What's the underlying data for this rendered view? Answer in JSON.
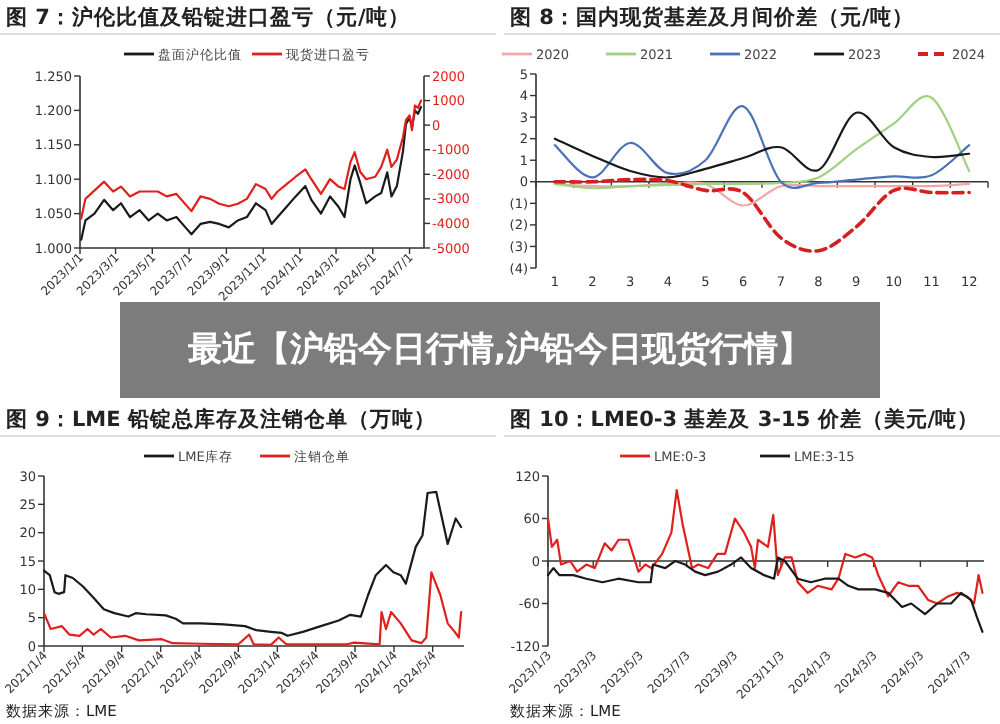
{
  "chart_data": [
    {
      "type": "line",
      "title": "图 7：沪伦比值及铅锭进口盈亏（元/吨）",
      "legend": "top",
      "xlim": [
        "2023-01-01",
        "2024-07-25"
      ],
      "xticks": [
        {
          "value": "2023-01-01",
          "label": "2023/1/1"
        },
        {
          "value": "2023-03-01",
          "label": "2023/3/1"
        },
        {
          "value": "2023-05-01",
          "label": "2023/5/1"
        },
        {
          "value": "2023-07-01",
          "label": "2023/7/1"
        },
        {
          "value": "2023-09-01",
          "label": "2023/9/1"
        },
        {
          "value": "2023-11-01",
          "label": "2023/11/1"
        },
        {
          "value": "2024-01-01",
          "label": "2024/1/1"
        },
        {
          "value": "2024-03-01",
          "label": "2024/3/1"
        },
        {
          "value": "2024-05-01",
          "label": "2024/5/1"
        },
        {
          "value": "2024-07-01",
          "label": "2024/7/1"
        }
      ],
      "ylim": [
        1.0,
        1.25
      ],
      "yticks": [
        {
          "value": 1.0,
          "label": "1.000"
        },
        {
          "value": 1.05,
          "label": "1.050"
        },
        {
          "value": 1.1,
          "label": "1.100"
        },
        {
          "value": 1.15,
          "label": "1.150"
        },
        {
          "value": 1.2,
          "label": "1.200"
        },
        {
          "value": 1.25,
          "label": "1.250"
        }
      ],
      "y2lim": [
        -5000,
        2000
      ],
      "y2ticks": [
        -5000,
        -4000,
        -3000,
        -2000,
        -1000,
        0,
        1000,
        2000
      ],
      "series": [
        {
          "name": "盘面沪伦比值",
          "color": "#1a1a1a",
          "x": [
            "2023-01-03",
            "2023-01-10",
            "2023-01-25",
            "2023-02-10",
            "2023-02-25",
            "2023-03-10",
            "2023-03-25",
            "2023-04-10",
            "2023-04-25",
            "2023-05-10",
            "2023-05-25",
            "2023-06-10",
            "2023-06-25",
            "2023-07-05",
            "2023-07-20",
            "2023-08-05",
            "2023-08-20",
            "2023-09-05",
            "2023-09-20",
            "2023-10-05",
            "2023-10-20",
            "2023-11-05",
            "2023-11-15",
            "2023-11-25",
            "2023-12-10",
            "2023-12-25",
            "2024-01-10",
            "2024-01-20",
            "2024-02-05",
            "2024-02-20",
            "2024-03-05",
            "2024-03-15",
            "2024-03-25",
            "2024-04-01",
            "2024-04-10",
            "2024-04-20",
            "2024-05-05",
            "2024-05-15",
            "2024-05-25",
            "2024-06-01",
            "2024-06-10",
            "2024-06-20",
            "2024-06-25",
            "2024-07-01",
            "2024-07-05",
            "2024-07-10",
            "2024-07-15",
            "2024-07-20"
          ],
          "values": [
            1.012,
            1.04,
            1.05,
            1.07,
            1.055,
            1.065,
            1.045,
            1.055,
            1.04,
            1.05,
            1.04,
            1.045,
            1.03,
            1.02,
            1.035,
            1.038,
            1.035,
            1.03,
            1.04,
            1.045,
            1.065,
            1.055,
            1.035,
            1.045,
            1.06,
            1.075,
            1.09,
            1.07,
            1.05,
            1.075,
            1.06,
            1.045,
            1.1,
            1.12,
            1.095,
            1.065,
            1.075,
            1.08,
            1.11,
            1.075,
            1.09,
            1.14,
            1.18,
            1.19,
            1.175,
            1.2,
            1.195,
            1.205
          ]
        },
        {
          "name": "现货进口盈亏",
          "color": "#e0201c",
          "axis": "y2",
          "x": [
            "2023-01-03",
            "2023-01-10",
            "2023-02-10",
            "2023-02-25",
            "2023-03-10",
            "2023-03-25",
            "2023-04-10",
            "2023-05-10",
            "2023-05-25",
            "2023-06-10",
            "2023-07-05",
            "2023-07-20",
            "2023-08-05",
            "2023-08-20",
            "2023-09-05",
            "2023-09-20",
            "2023-10-05",
            "2023-10-20",
            "2023-11-05",
            "2023-11-15",
            "2023-11-25",
            "2023-12-10",
            "2023-12-25",
            "2024-01-10",
            "2024-01-20",
            "2024-02-05",
            "2024-02-20",
            "2024-03-05",
            "2024-03-15",
            "2024-03-25",
            "2024-04-01",
            "2024-04-10",
            "2024-04-20",
            "2024-05-05",
            "2024-05-15",
            "2024-05-25",
            "2024-06-01",
            "2024-06-10",
            "2024-06-20",
            "2024-06-25",
            "2024-07-01",
            "2024-07-05",
            "2024-07-10",
            "2024-07-15",
            "2024-07-20"
          ],
          "values": [
            -3800,
            -3000,
            -2300,
            -2700,
            -2500,
            -2900,
            -2700,
            -2700,
            -2900,
            -2800,
            -3500,
            -2900,
            -3000,
            -3200,
            -3300,
            -3200,
            -3000,
            -2400,
            -2600,
            -3000,
            -2700,
            -2400,
            -2100,
            -1800,
            -2200,
            -2800,
            -2200,
            -2500,
            -2600,
            -1500,
            -1100,
            -1900,
            -2200,
            -2100,
            -1700,
            -1000,
            -1700,
            -1400,
            -500,
            200,
            400,
            -200,
            800,
            700,
            1000
          ]
        }
      ]
    },
    {
      "type": "line",
      "title": "图 8：国内现货基差及月间价差（元/吨）",
      "legend": "top",
      "categories": [
        "1",
        "2",
        "3",
        "4",
        "5",
        "6",
        "7",
        "8",
        "9",
        "10",
        "11",
        "12"
      ],
      "ylim": [
        -4,
        5
      ],
      "yticks": [
        {
          "value": -4,
          "label": "(4)"
        },
        {
          "value": -3,
          "label": "(3)"
        },
        {
          "value": -2,
          "label": "(2)"
        },
        {
          "value": -1,
          "label": "(1)"
        },
        0,
        1,
        2,
        3,
        4,
        5
      ],
      "series": [
        {
          "name": "2020",
          "color": "#f4a6a6",
          "values": [
            -0.1,
            -0.2,
            -0.2,
            -0.1,
            -0.1,
            -1.1,
            -0.2,
            -0.2,
            -0.2,
            -0.2,
            -0.2,
            -0.1
          ]
        },
        {
          "name": "2021",
          "color": "#9fd17f",
          "values": [
            -0.1,
            -0.3,
            -0.2,
            -0.15,
            -0.1,
            -0.1,
            -0.05,
            0.2,
            1.5,
            2.7,
            3.9,
            0.5
          ]
        },
        {
          "name": "2022",
          "color": "#4a72b8",
          "values": [
            1.7,
            0.2,
            1.8,
            0.4,
            1.0,
            3.5,
            0,
            -0.05,
            0.1,
            0.25,
            0.3,
            1.7
          ]
        },
        {
          "name": "2023",
          "color": "#1a1a1a",
          "values": [
            2.0,
            1.2,
            0.5,
            0.2,
            0.6,
            1.1,
            1.6,
            0.55,
            3.2,
            1.6,
            1.15,
            1.3
          ]
        },
        {
          "name": "2024",
          "color": "#d42020",
          "line_style": "dashed",
          "values": [
            0,
            0,
            0.1,
            0.05,
            -0.4,
            -0.5,
            -2.6,
            -3.2,
            -2.1,
            -0.4,
            -0.5,
            -0.5
          ]
        }
      ]
    },
    {
      "type": "other",
      "title": "最近【沪铅今日行情,沪铅今日现货行情】"
    },
    {
      "type": "line",
      "title": "图 9：LME 铅锭总库存及注销仓单（万吨）",
      "legend": "top",
      "xlim": [
        "2021-01-04",
        "2024-08-10"
      ],
      "xticks": [
        {
          "value": "2021-01-04",
          "label": "2021/1/4"
        },
        {
          "value": "2021-05-04",
          "label": "2021/5/4"
        },
        {
          "value": "2021-09-04",
          "label": "2021/9/4"
        },
        {
          "value": "2022-01-04",
          "label": "2022/1/4"
        },
        {
          "value": "2022-05-04",
          "label": "2022/5/4"
        },
        {
          "value": "2022-09-04",
          "label": "2022/9/4"
        },
        {
          "value": "2023-01-04",
          "label": "2023/1/4"
        },
        {
          "value": "2023-05-04",
          "label": "2023/5/4"
        },
        {
          "value": "2023-09-04",
          "label": "2023/9/4"
        },
        {
          "value": "2024-01-04",
          "label": "2024/1/4"
        },
        {
          "value": "2024-05-04",
          "label": "2024/5/4"
        }
      ],
      "ylim": [
        0,
        30
      ],
      "yticks": [
        0,
        5,
        10,
        15,
        20,
        25,
        30
      ],
      "annotations": [
        "数据来源：LME"
      ],
      "series": [
        {
          "name": "LME库存",
          "color": "#1a1a1a",
          "x": [
            "2021-01-04",
            "2021-01-22",
            "2021-02-06",
            "2021-02-18",
            "2021-03-08",
            "2021-03-12",
            "2021-04-04",
            "2021-05-06",
            "2021-06-08",
            "2021-07-10",
            "2021-08-12",
            "2021-09-25",
            "2021-10-18",
            "2021-11-20",
            "2022-01-20",
            "2022-02-20",
            "2022-03-15",
            "2022-05-10",
            "2022-07-20",
            "2022-09-25",
            "2022-10-30",
            "2022-12-15",
            "2023-01-18",
            "2023-02-05",
            "2023-03-25",
            "2023-05-20",
            "2023-07-15",
            "2023-08-20",
            "2023-09-22",
            "2023-10-15",
            "2023-11-08",
            "2023-12-10",
            "2024-01-02",
            "2024-01-25",
            "2024-02-10",
            "2024-03-12",
            "2024-04-02",
            "2024-04-18",
            "2024-05-15",
            "2024-06-20",
            "2024-07-15",
            "2024-08-01"
          ],
          "values": [
            13.3,
            12.5,
            9.5,
            9.2,
            9.5,
            12.5,
            12,
            10.5,
            8.5,
            6.5,
            5.8,
            5.2,
            5.8,
            5.6,
            5.4,
            4.8,
            4.0,
            4.0,
            3.8,
            3.5,
            2.8,
            2.5,
            2.3,
            1.8,
            2.5,
            3.5,
            4.5,
            5.5,
            5.2,
            9,
            12.5,
            14.3,
            13,
            12.5,
            11,
            17.5,
            19.5,
            27,
            27.2,
            18,
            22.5,
            21
          ]
        },
        {
          "name": "注销仓单",
          "color": "#e0201c",
          "x": [
            "2021-01-04",
            "2021-01-25",
            "2021-03-01",
            "2021-03-25",
            "2021-04-25",
            "2021-05-20",
            "2021-06-08",
            "2021-07-01",
            "2021-08-01",
            "2021-09-15",
            "2021-10-28",
            "2022-01-08",
            "2022-02-10",
            "2022-05-10",
            "2022-09-04",
            "2022-10-08",
            "2022-10-22",
            "2022-12-15",
            "2023-01-08",
            "2023-02-01",
            "2023-08-10",
            "2023-09-01",
            "2023-11-20",
            "2023-11-26",
            "2023-12-10",
            "2023-12-26",
            "2024-01-25",
            "2024-02-28",
            "2024-03-30",
            "2024-04-14",
            "2024-04-30",
            "2024-05-28",
            "2024-06-20",
            "2024-07-12",
            "2024-07-25",
            "2024-08-01"
          ],
          "values": [
            5.8,
            3.0,
            3.5,
            2.0,
            1.8,
            3.0,
            2.0,
            3.0,
            1.5,
            1.8,
            1.0,
            1.2,
            0.5,
            0.4,
            0.3,
            2.0,
            0.3,
            0.2,
            1.5,
            0.3,
            0.3,
            0.6,
            0.3,
            6.0,
            3.0,
            6.0,
            4.0,
            1.0,
            0.5,
            1.5,
            13.0,
            9,
            4,
            2.5,
            1.5,
            6.0
          ]
        }
      ]
    },
    {
      "type": "line",
      "title": "图 10：LME0-3 基差及 3-15 价差（美元/吨）",
      "legend": "top",
      "xlim": [
        "2023-01-03",
        "2024-07-25"
      ],
      "xticks": [
        {
          "value": "2023-01-03",
          "label": "2023/1/3"
        },
        {
          "value": "2023-03-03",
          "label": "2023/3/3"
        },
        {
          "value": "2023-05-03",
          "label": "2023/5/3"
        },
        {
          "value": "2023-07-03",
          "label": "2023/7/3"
        },
        {
          "value": "2023-09-03",
          "label": "2023/9/3"
        },
        {
          "value": "2023-11-03",
          "label": "2023/11/3"
        },
        {
          "value": "2024-01-03",
          "label": "2024/1/3"
        },
        {
          "value": "2024-03-03",
          "label": "2024/3/3"
        },
        {
          "value": "2024-05-03",
          "label": "2024/5/3"
        },
        {
          "value": "2024-07-03",
          "label": "2024/7/3"
        }
      ],
      "ylim": [
        -120,
        120
      ],
      "yticks": [
        -120,
        -60,
        0,
        60,
        120
      ],
      "annotations": [
        "数据来源：LME"
      ],
      "series": [
        {
          "name": "LME:0-3",
          "color": "#e0201c",
          "x": [
            "2023-01-03",
            "2023-01-08",
            "2023-01-15",
            "2023-01-20",
            "2023-02-01",
            "2023-02-10",
            "2023-02-22",
            "2023-03-05",
            "2023-03-18",
            "2023-03-27",
            "2023-04-05",
            "2023-04-18",
            "2023-05-01",
            "2023-05-10",
            "2023-05-18",
            "2023-06-01",
            "2023-06-13",
            "2023-06-20",
            "2023-06-28",
            "2023-07-10",
            "2023-07-18",
            "2023-07-31",
            "2023-08-12",
            "2023-08-22",
            "2023-09-04",
            "2023-09-16",
            "2023-09-25",
            "2023-09-30",
            "2023-10-04",
            "2023-10-17",
            "2023-10-24",
            "2023-10-30",
            "2023-11-08",
            "2023-11-17",
            "2023-11-25",
            "2023-12-08",
            "2023-12-21",
            "2024-01-08",
            "2024-01-17",
            "2024-01-26",
            "2024-02-08",
            "2024-02-20",
            "2024-03-01",
            "2024-03-09",
            "2024-03-22",
            "2024-04-04",
            "2024-04-17",
            "2024-04-30",
            "2024-05-13",
            "2024-05-25",
            "2024-06-08",
            "2024-06-20",
            "2024-07-03",
            "2024-07-12",
            "2024-07-18",
            "2024-07-23"
          ],
          "values": [
            60,
            20,
            30,
            -5,
            0,
            -15,
            -5,
            -10,
            25,
            15,
            30,
            30,
            -15,
            -5,
            -10,
            10,
            40,
            100,
            50,
            -10,
            -5,
            -10,
            10,
            10,
            60,
            40,
            20,
            -10,
            30,
            20,
            65,
            -20,
            5,
            5,
            -30,
            -45,
            -35,
            -40,
            -25,
            10,
            5,
            10,
            5,
            -20,
            -50,
            -30,
            -35,
            -35,
            -55,
            -60,
            -50,
            -45,
            -50,
            -60,
            -20,
            -45
          ]
        },
        {
          "name": "LME:3-15",
          "color": "#1a1a1a",
          "x": [
            "2023-01-03",
            "2023-01-10",
            "2023-01-18",
            "2023-02-05",
            "2023-02-22",
            "2023-03-15",
            "2023-04-05",
            "2023-05-01",
            "2023-05-17",
            "2023-05-20",
            "2023-06-05",
            "2023-06-18",
            "2023-07-01",
            "2023-07-14",
            "2023-07-27",
            "2023-08-13",
            "2023-08-30",
            "2023-09-12",
            "2023-09-25",
            "2023-10-12",
            "2023-10-25",
            "2023-10-30",
            "2023-11-08",
            "2023-11-25",
            "2023-12-12",
            "2023-12-30",
            "2024-01-17",
            "2024-01-30",
            "2024-02-12",
            "2024-03-05",
            "2024-03-22",
            "2024-04-09",
            "2024-04-21",
            "2024-05-09",
            "2024-05-25",
            "2024-06-12",
            "2024-06-25",
            "2024-07-08",
            "2024-07-16",
            "2024-07-23"
          ],
          "values": [
            -20,
            -10,
            -20,
            -20,
            -25,
            -30,
            -25,
            -30,
            -30,
            -5,
            -10,
            0,
            -5,
            -15,
            -20,
            -15,
            -5,
            5,
            -10,
            -20,
            -25,
            5,
            0,
            -25,
            -30,
            -25,
            -25,
            -35,
            -40,
            -40,
            -45,
            -65,
            -60,
            -75,
            -60,
            -60,
            -45,
            -55,
            -80,
            -100
          ]
        }
      ]
    }
  ]
}
